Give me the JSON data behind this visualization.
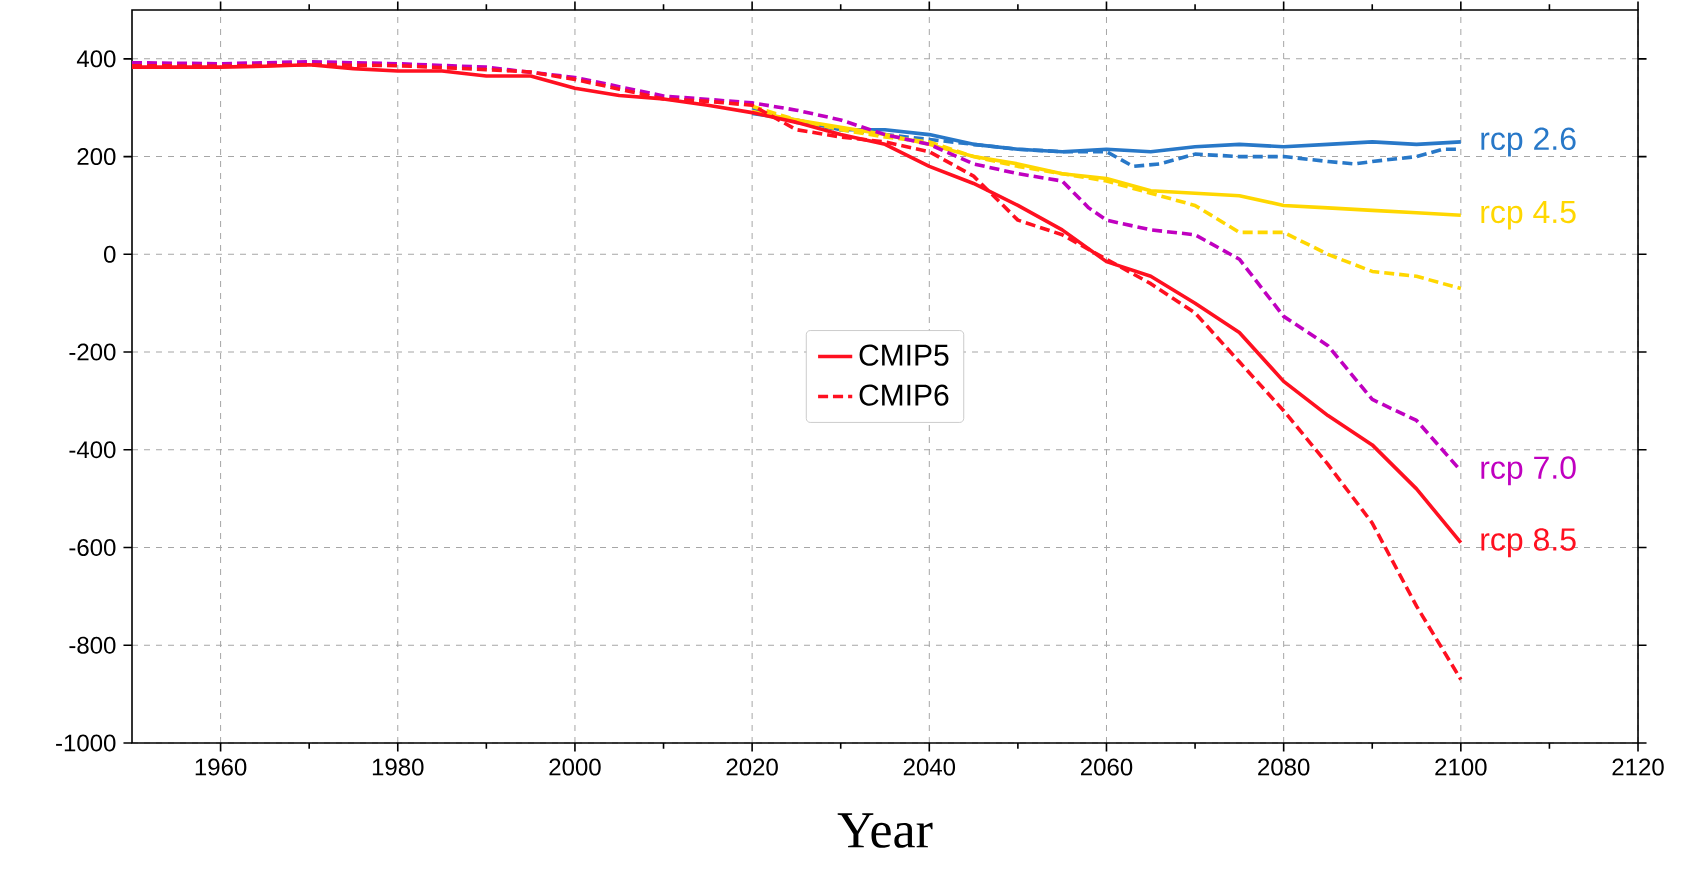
{
  "chart_data": {
    "type": "line",
    "xlabel": "Year",
    "xlim": [
      1950,
      2120
    ],
    "ylim": [
      -1000,
      500
    ],
    "xticks": [
      1960,
      1980,
      2000,
      2020,
      2040,
      2060,
      2080,
      2100,
      2120
    ],
    "yticks": [
      -1000,
      -800,
      -600,
      -400,
      -200,
      0,
      200,
      400
    ],
    "grid": true,
    "legend": "center",
    "marker": "none",
    "series": [
      {
        "color": "#2878c8",
        "line_style": "solid",
        "x": [
          2020,
          2025,
          2030,
          2035,
          2040,
          2045,
          2050,
          2055,
          2060,
          2065,
          2070,
          2075,
          2080,
          2085,
          2090,
          2095,
          2100
        ],
        "values": [
          288,
          275,
          255,
          255,
          245,
          225,
          215,
          210,
          215,
          210,
          220,
          225,
          220,
          225,
          230,
          225,
          230
        ]
      },
      {
        "color": "#2878c8",
        "line_style": "dashed",
        "x": [
          2020,
          2025,
          2030,
          2035,
          2040,
          2045,
          2050,
          2055,
          2060,
          2063,
          2066,
          2070,
          2075,
          2080,
          2085,
          2088,
          2090,
          2095,
          2098,
          2100
        ],
        "values": [
          300,
          270,
          255,
          245,
          235,
          225,
          215,
          210,
          210,
          180,
          185,
          205,
          200,
          200,
          190,
          185,
          190,
          200,
          215,
          215
        ]
      },
      {
        "color": "#ffd700",
        "line_style": "solid",
        "x": [
          2020,
          2025,
          2030,
          2035,
          2040,
          2045,
          2050,
          2055,
          2060,
          2065,
          2070,
          2075,
          2080,
          2085,
          2090,
          2095,
          2100
        ],
        "values": [
          292,
          275,
          260,
          245,
          225,
          200,
          185,
          165,
          155,
          130,
          125,
          120,
          100,
          95,
          90,
          85,
          80
        ]
      },
      {
        "color": "#ffd700",
        "line_style": "dashed",
        "x": [
          2020,
          2025,
          2030,
          2035,
          2040,
          2045,
          2050,
          2055,
          2060,
          2065,
          2070,
          2075,
          2080,
          2085,
          2090,
          2095,
          2100
        ],
        "values": [
          303,
          275,
          255,
          240,
          230,
          200,
          180,
          165,
          150,
          125,
          100,
          45,
          45,
          0,
          -35,
          -45,
          -70
        ]
      },
      {
        "color": "#c000c0",
        "line_style": "dashed",
        "x": [
          1950,
          1960,
          1970,
          1980,
          1990,
          2000,
          2010,
          2020,
          2025,
          2030,
          2035,
          2040,
          2045,
          2050,
          2055,
          2058,
          2060,
          2065,
          2070,
          2075,
          2080,
          2085,
          2090,
          2095,
          2100
        ],
        "values": [
          392,
          390,
          394,
          390,
          383,
          362,
          324,
          310,
          295,
          275,
          245,
          225,
          185,
          165,
          150,
          95,
          70,
          50,
          40,
          -10,
          -127,
          -187,
          -297,
          -340,
          -443
        ]
      },
      {
        "name": "CMIP5",
        "color": "#ff1020",
        "line_style": "solid",
        "x": [
          1950,
          1960,
          1965,
          1970,
          1975,
          1980,
          1985,
          1990,
          1995,
          2000,
          2005,
          2010,
          2015,
          2020,
          2025,
          2030,
          2035,
          2040,
          2045,
          2050,
          2055,
          2060,
          2065,
          2070,
          2075,
          2080,
          2085,
          2090,
          2095,
          2100
        ],
        "values": [
          383,
          383,
          385,
          388,
          380,
          375,
          375,
          365,
          365,
          340,
          325,
          318,
          305,
          290,
          270,
          245,
          225,
          180,
          145,
          100,
          50,
          -15,
          -45,
          -100,
          -160,
          -260,
          -330,
          -390,
          -480,
          -590
        ]
      },
      {
        "name": "CMIP6",
        "color": "#ff1020",
        "line_style": "dashed",
        "x": [
          1950,
          1960,
          1970,
          1980,
          1990,
          1995,
          2000,
          2005,
          2010,
          2015,
          2020,
          2025,
          2030,
          2035,
          2040,
          2045,
          2050,
          2055,
          2060,
          2065,
          2070,
          2075,
          2080,
          2085,
          2090,
          2095,
          2100
        ],
        "values": [
          386,
          385,
          388,
          386,
          378,
          373,
          358,
          338,
          318,
          313,
          305,
          255,
          240,
          230,
          210,
          160,
          70,
          40,
          -10,
          -60,
          -120,
          -220,
          -320,
          -430,
          -550,
          -720,
          -870
        ]
      }
    ],
    "annotations": [
      "rcp 2.6",
      "rcp 4.5",
      "rcp 7.0",
      "rcp 8.5"
    ]
  }
}
